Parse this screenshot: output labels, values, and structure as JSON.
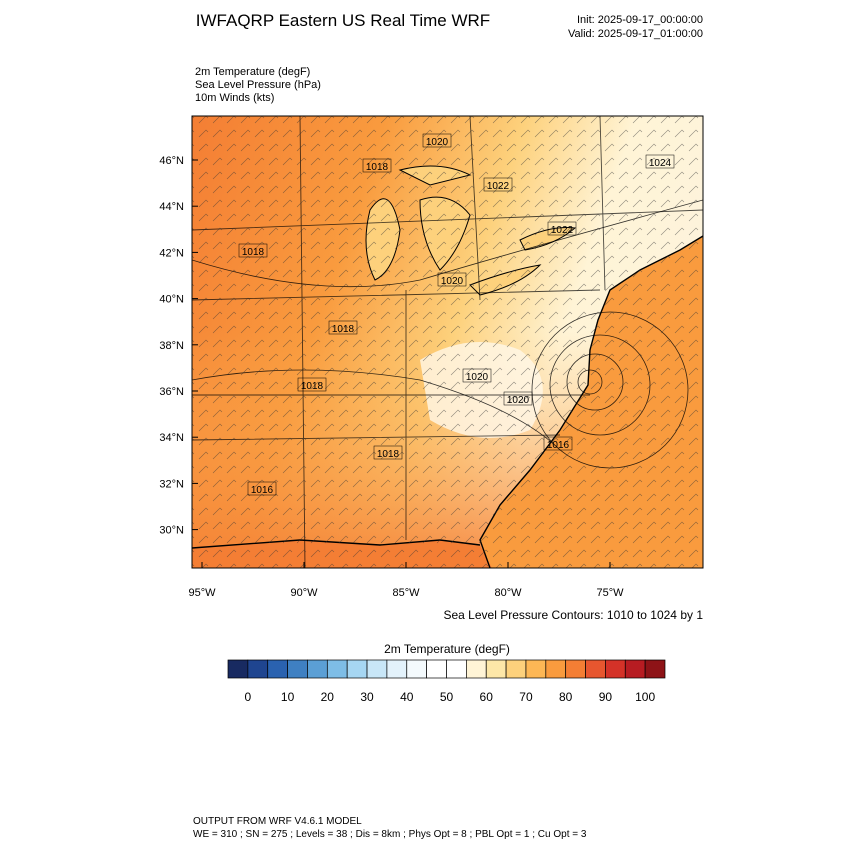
{
  "header": {
    "title": "IWFAQRP Eastern US Real Time WRF",
    "init": "Init: 2025-09-17_00:00:00",
    "valid": "Valid: 2025-09-17_01:00:00"
  },
  "fields": [
    "2m Temperature   (degF)",
    "Sea Level Pressure   (hPa)",
    "10m Winds   (kts)"
  ],
  "map": {
    "lat_labels": [
      "46°N",
      "44°N",
      "42°N",
      "40°N",
      "38°N",
      "36°N",
      "34°N",
      "32°N",
      "30°N"
    ],
    "lon_labels": [
      "95°W",
      "90°W",
      "85°W",
      "80°W",
      "75°W"
    ],
    "contour_labels": [
      "1020",
      "1018",
      "1024",
      "1022",
      "1022",
      "1018",
      "1020",
      "1018",
      "1020",
      "1018",
      "1020",
      "1016",
      "1018",
      "1016"
    ],
    "contour_note": "Sea Level Pressure Contours: 1010 to 1024 by 1"
  },
  "colorbar": {
    "title": "2m Temperature  (degF)",
    "colors": [
      "#182a61",
      "#1f4590",
      "#2a62b0",
      "#3f80c2",
      "#5b9fd5",
      "#7ebde6",
      "#a6d6f2",
      "#c8e6f7",
      "#e3f2fb",
      "#f4fafd",
      "#ffffff",
      "#ffffff",
      "#fff4d6",
      "#fde7a8",
      "#fdd17c",
      "#fdb755",
      "#f99b3e",
      "#f47e34",
      "#e7562f",
      "#d43228",
      "#b71c22",
      "#8e1317"
    ],
    "ticks": [
      0,
      10,
      20,
      30,
      40,
      50,
      60,
      70,
      80,
      90,
      100
    ]
  },
  "footer": {
    "line1": "OUTPUT FROM WRF V4.6.1 MODEL",
    "line2": "WE = 310 ; SN = 275 ; Levels = 38 ; Dis = 8km ; Phys Opt = 8 ; PBL Opt = 1 ; Cu Opt = 3"
  }
}
